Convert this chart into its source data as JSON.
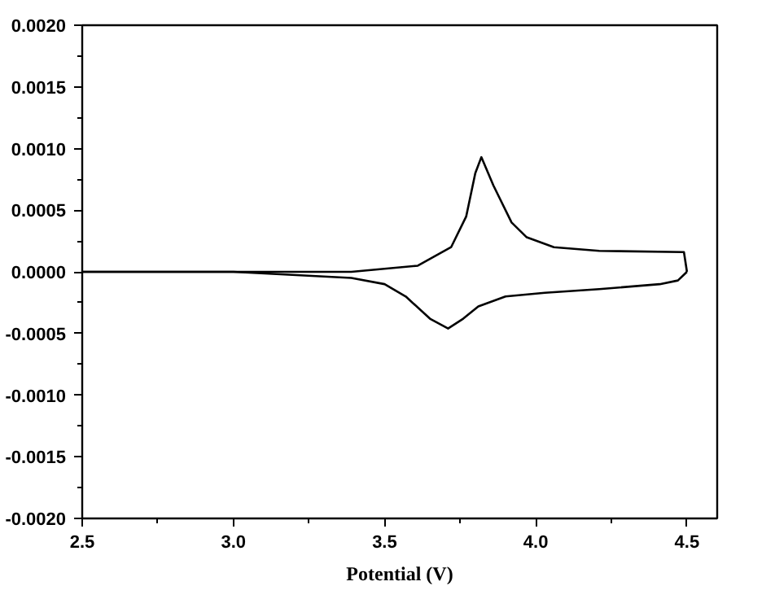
{
  "chart_data": {
    "type": "line",
    "xlabel": "Potential (V)",
    "xlim": [
      2.5,
      4.6
    ],
    "xticks": [
      2.5,
      {
        "value": 3,
        "label": "3.0"
      },
      3.5,
      {
        "value": 4,
        "label": "4.0"
      },
      4.5
    ],
    "ylim": [
      -0.002,
      0.002
    ],
    "yticks": [
      {
        "value": -0.002,
        "label": "-0.0020"
      },
      {
        "value": -0.0015,
        "label": "-0.0015"
      },
      {
        "value": -0.001,
        "label": "-0.0010"
      },
      {
        "value": -0.0005,
        "label": "-0.0005"
      },
      {
        "value": 0,
        "label": "0.0000"
      },
      {
        "value": 0.0005,
        "label": "0.0005"
      },
      {
        "value": 0.001,
        "label": "0.0010"
      },
      {
        "value": 0.0015,
        "label": "0.0015"
      },
      {
        "value": 0.002,
        "label": "0.0020"
      }
    ],
    "grid": false,
    "series": [
      {
        "color": "#000000",
        "x": [
          2.5,
          3.0,
          3.39,
          3.61,
          3.72,
          3.77,
          3.8,
          3.82,
          3.86,
          3.92,
          3.97,
          4.06,
          4.21,
          4.49,
          4.5
        ],
        "values": [
          0.0,
          0.0,
          0.0,
          5e-05,
          0.0002,
          0.00045,
          0.0008,
          0.00093,
          0.0007,
          0.0004,
          0.00028,
          0.0002,
          0.00017,
          0.00016,
          0.0
        ]
      },
      {
        "color": "#000000",
        "x": [
          4.5,
          4.47,
          4.41,
          4.21,
          4.03,
          3.9,
          3.81,
          3.76,
          3.71,
          3.65,
          3.57,
          3.5,
          3.39,
          3.0,
          2.5
        ],
        "values": [
          0.0,
          -7e-05,
          -0.0001,
          -0.00014,
          -0.00017,
          -0.0002,
          -0.00028,
          -0.00038,
          -0.00046,
          -0.00038,
          -0.0002,
          -0.0001,
          -5e-05,
          0.0,
          0.0
        ]
      }
    ]
  }
}
